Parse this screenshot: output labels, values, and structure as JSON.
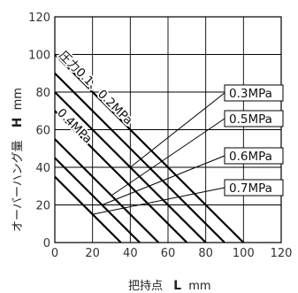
{
  "chart_data": {
    "type": "line",
    "xlabel": "把持点 L mm",
    "ylabel": "オーバーハング量 H mm",
    "xlabel_prefix": "把持点",
    "xlabel_symbol": "L",
    "xlabel_unit": "mm",
    "ylabel_prefix": "オーバーハング量",
    "ylabel_symbol": "H",
    "ylabel_unit": "mm",
    "xlim": [
      0,
      120
    ],
    "ylim": [
      0,
      120
    ],
    "xticks": [
      "0",
      "20",
      "40",
      "60",
      "80",
      "100",
      "120"
    ],
    "yticks": [
      "0",
      "20",
      "40",
      "60",
      "80",
      "100",
      "120"
    ],
    "grid": true,
    "series": [
      {
        "name": "圧力0.1、0.2MPa",
        "points": [
          [
            0,
            100
          ],
          [
            100,
            0
          ]
        ]
      },
      {
        "name": "",
        "points": [
          [
            0,
            90
          ],
          [
            90,
            0
          ]
        ]
      },
      {
        "name": "0.3MPa",
        "points": [
          [
            0,
            80
          ],
          [
            80,
            0
          ]
        ]
      },
      {
        "name": "0.4MPa",
        "points": [
          [
            0,
            70
          ],
          [
            70,
            0
          ]
        ]
      },
      {
        "name": "0.5MPa",
        "points": [
          [
            0,
            55
          ],
          [
            55,
            0
          ]
        ]
      },
      {
        "name": "0.6MPa",
        "points": [
          [
            0,
            45
          ],
          [
            45,
            0
          ]
        ]
      },
      {
        "name": "0.7MPa",
        "points": [
          [
            0,
            35
          ],
          [
            35,
            0
          ]
        ]
      }
    ],
    "annotations": {
      "label_a": "圧力0.1、0.2MPa",
      "label_b": "0.4MPa",
      "label_c": "0.3MPa",
      "label_d": "0.5MPa",
      "label_e": "0.6MPa",
      "label_f": "0.7MPa"
    }
  }
}
